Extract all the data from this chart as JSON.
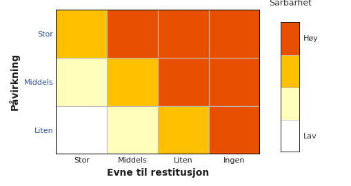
{
  "grid": [
    [
      "#FFC000",
      "#E85000",
      "#E85000",
      "#E85000"
    ],
    [
      "#FFFFBB",
      "#FFC000",
      "#E85000",
      "#E85000"
    ],
    [
      "#FFFFFF",
      "#FFFFBB",
      "#FFC000",
      "#E85000"
    ]
  ],
  "row_labels": [
    "Stor",
    "Middels",
    "Liten"
  ],
  "col_labels": [
    "Stor",
    "Middels",
    "Liten",
    "Ingen"
  ],
  "xlabel": "Evne til restitusjon",
  "ylabel": "Påvirkning",
  "legend_title": "Sårbarhet",
  "legend_high_label": "Høy",
  "legend_low_label": "Lav",
  "legend_colors": [
    "#E85000",
    "#FFC000",
    "#FFFFBB",
    "#FFFFFF"
  ],
  "grid_line_color": "#BBBBBB",
  "border_color": "#000000",
  "xlabel_fontsize": 10,
  "ylabel_fontsize": 10,
  "tick_fontsize": 8,
  "legend_title_fontsize": 9,
  "legend_label_fontsize": 8,
  "row_label_color": "#2F5496",
  "col_label_color": "#1F1F1F",
  "axis_label_color": "#1F1F1F"
}
